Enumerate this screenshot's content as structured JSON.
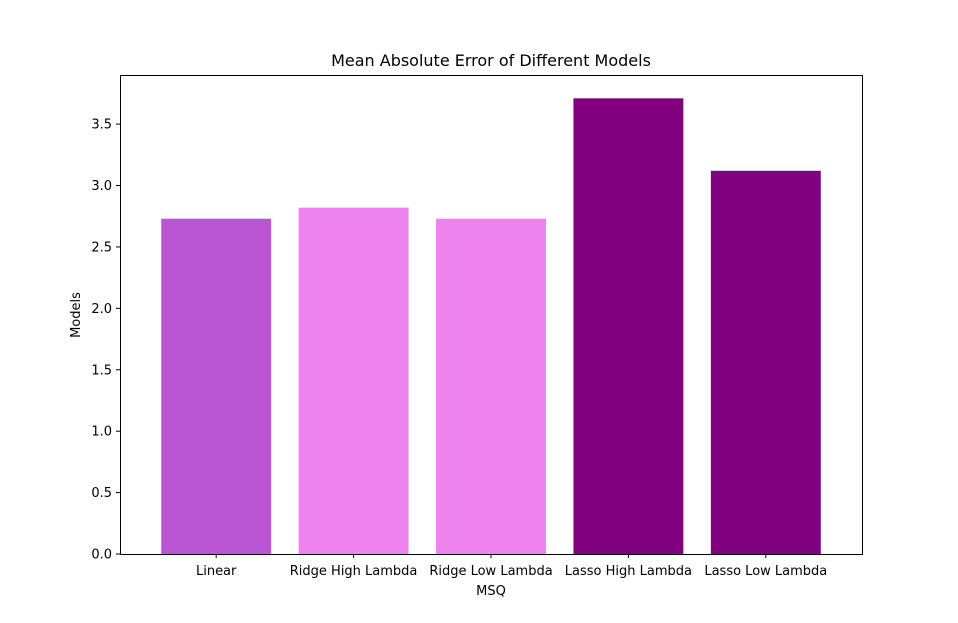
{
  "chart_data": {
    "type": "bar",
    "title": "Mean Absolute Error of Different Models",
    "xlabel": "MSQ",
    "ylabel": "Models",
    "categories": [
      "Linear",
      "Ridge High Lambda",
      "Ridge Low Lambda",
      "Lasso High Lambda",
      "Lasso Low Lambda"
    ],
    "values": [
      2.73,
      2.82,
      2.73,
      3.71,
      3.12
    ],
    "colors": [
      "#ba55d3",
      "#ee82ee",
      "#ee82ee",
      "#800080",
      "#800080"
    ],
    "ylim": [
      0,
      3.9
    ],
    "yticks": [
      "0.0",
      "0.5",
      "1.0",
      "1.5",
      "2.0",
      "2.5",
      "3.0",
      "3.5"
    ],
    "grid": false,
    "legend": "none"
  }
}
